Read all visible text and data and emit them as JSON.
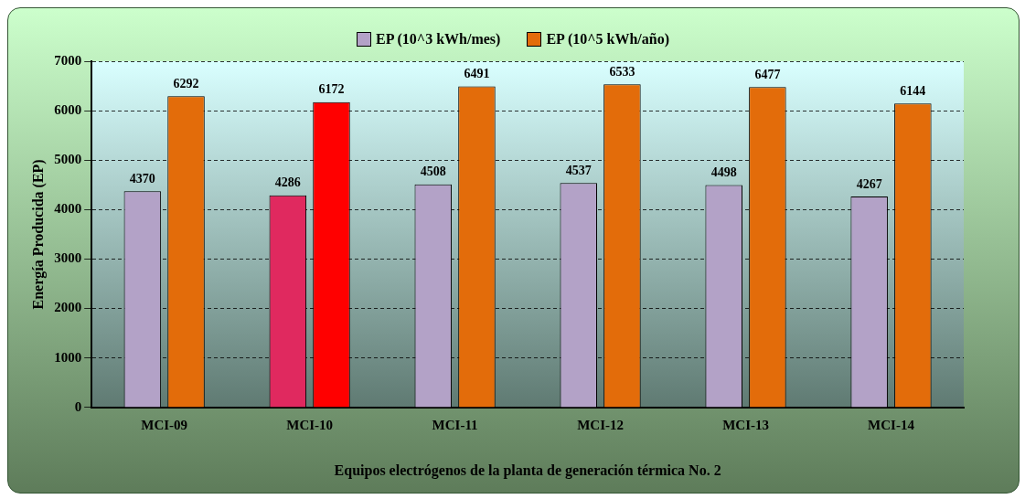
{
  "chart_data": {
    "type": "bar",
    "xlabel": "Equipos electrógenos de la planta de generación térmica No. 2",
    "ylabel": "Energía Producida (EP)",
    "categories": [
      "MCI-09",
      "MCI-10",
      "MCI-11",
      "MCI-12",
      "MCI-13",
      "MCI-14"
    ],
    "series": [
      {
        "name": "EP (10^3 kWh/mes)",
        "color": "#b3a2c7",
        "colors": [
          "#b3a2c7",
          "#e0295f",
          "#b3a2c7",
          "#b3a2c7",
          "#b3a2c7",
          "#b3a2c7"
        ],
        "values": [
          4370,
          4286,
          4508,
          4537,
          4498,
          4267
        ]
      },
      {
        "name": "EP (10^5 kWh/año)",
        "color": "#e36c0a",
        "colors": [
          "#e36c0a",
          "#ff0000",
          "#e36c0a",
          "#e36c0a",
          "#e36c0a",
          "#e36c0a"
        ],
        "values": [
          6292,
          6172,
          6491,
          6533,
          6477,
          6144
        ]
      }
    ],
    "ylim": [
      0,
      7000
    ],
    "yticks": [
      0,
      1000,
      2000,
      3000,
      4000,
      5000,
      6000,
      7000
    ],
    "grid": "y",
    "legend": "top",
    "data_labels": true
  }
}
